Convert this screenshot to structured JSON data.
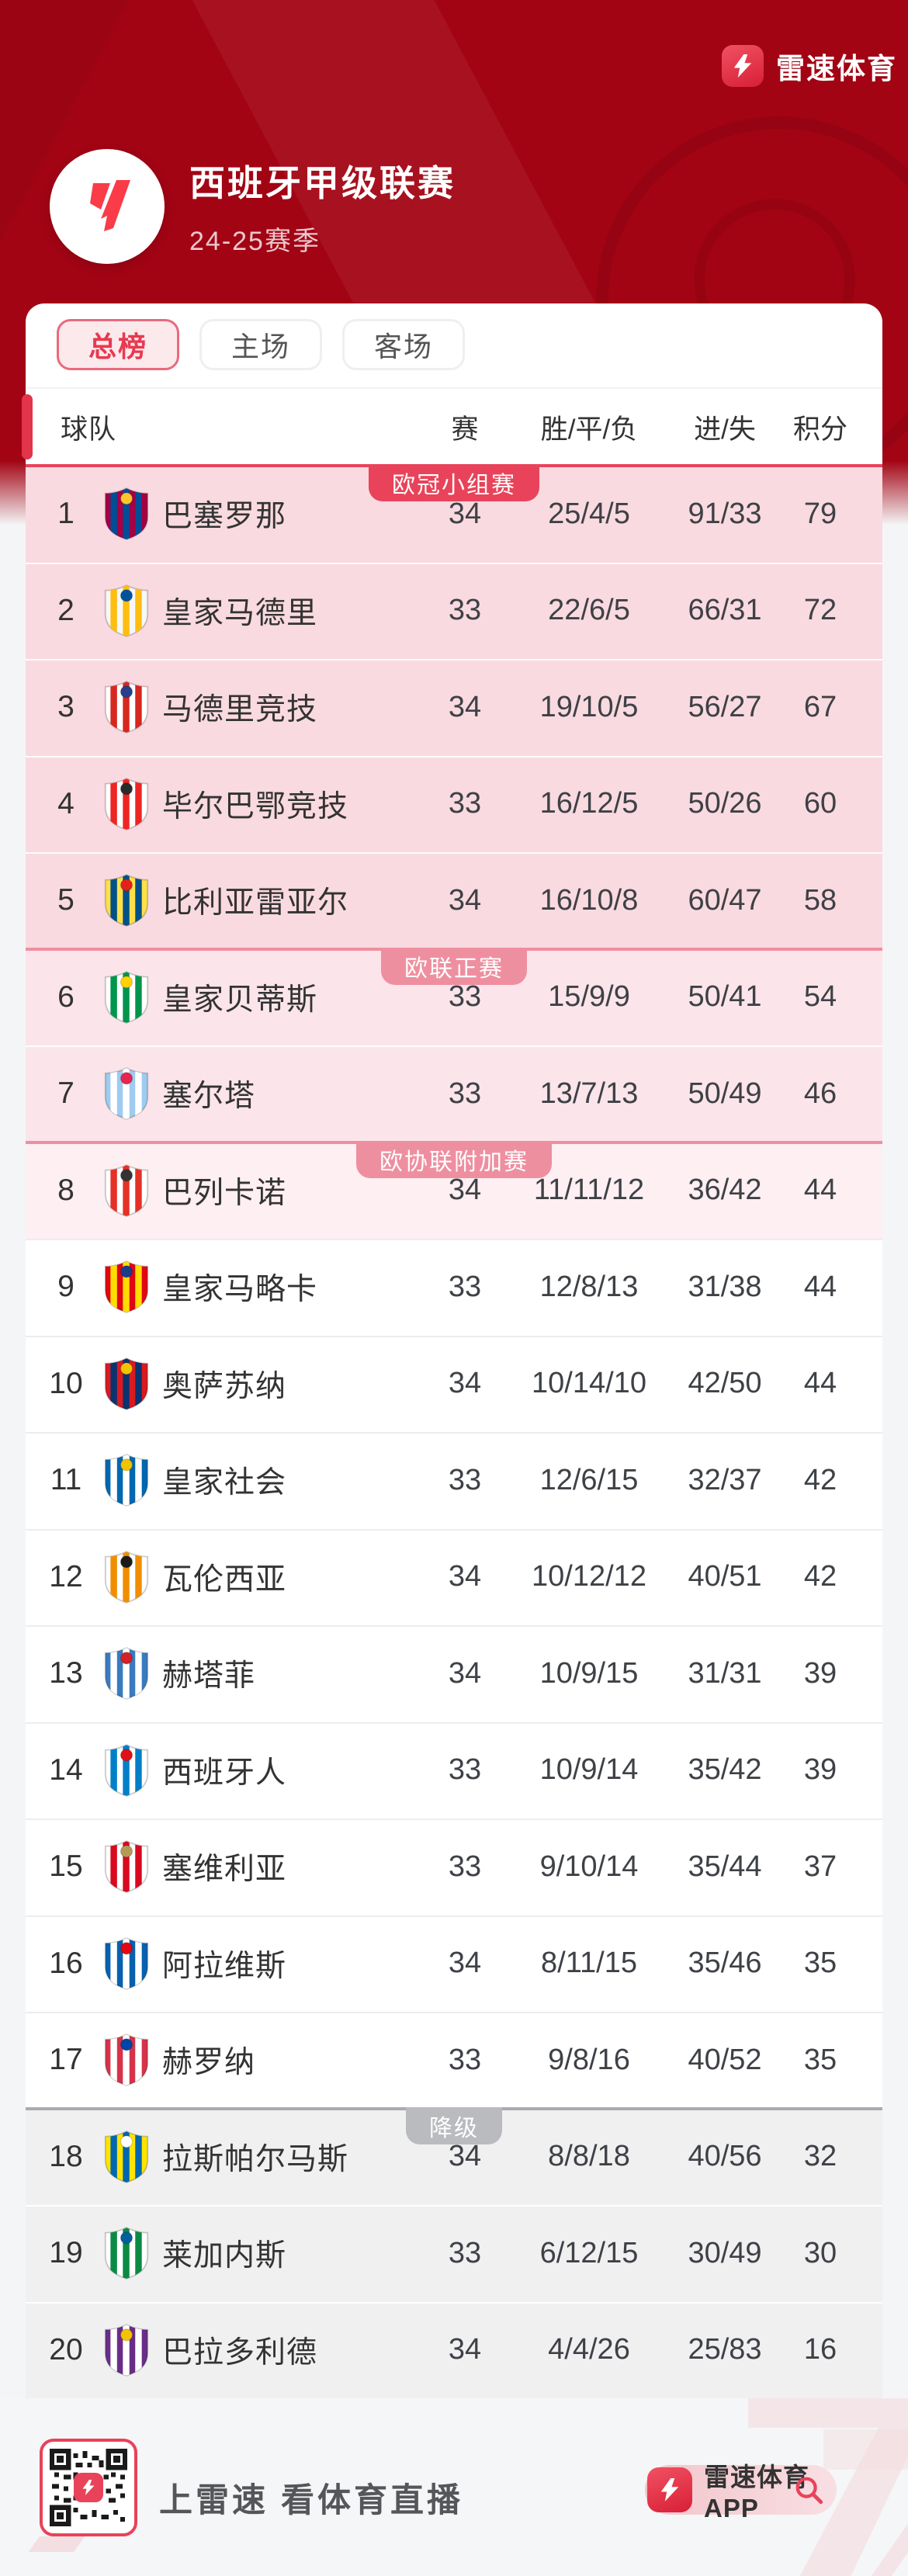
{
  "brand": {
    "name": "雷速体育"
  },
  "header": {
    "league_title": "西班牙甲级联赛",
    "season": "24-25赛季"
  },
  "tabs": [
    {
      "label": "总榜",
      "active": true
    },
    {
      "label": "主场",
      "active": false
    },
    {
      "label": "客场",
      "active": false
    }
  ],
  "table": {
    "columns": {
      "team": "球队",
      "played": "赛",
      "wdl": "胜/平/负",
      "goals": "进/失",
      "points": "积分"
    },
    "zones": [
      {
        "rank": 1,
        "label": "欧冠小组赛",
        "line_color": "#E8435A",
        "tag_color": "#E8435A"
      },
      {
        "rank": 6,
        "label": "欧联正赛",
        "line_color": "#EE8FA0",
        "tag_color": "#EE8FA0"
      },
      {
        "rank": 8,
        "label": "欧协联附加赛",
        "line_color": "#EE8FA0",
        "tag_color": "#EE8FA0"
      },
      {
        "rank": 18,
        "label": "降级",
        "line_color": "#A9ABAE",
        "tag_color": "#B9BBBE"
      }
    ],
    "rows": [
      {
        "rank": 1,
        "name": "巴塞罗那",
        "played": "34",
        "wdl": "25/4/5",
        "goals": "91/33",
        "points": "79",
        "band": "ucl",
        "logo_colors": [
          "#A50044",
          "#004D98",
          "#FDC52C"
        ]
      },
      {
        "rank": 2,
        "name": "皇家马德里",
        "played": "33",
        "wdl": "22/6/5",
        "goals": "66/31",
        "points": "72",
        "band": "ucl",
        "logo_colors": [
          "#F7F7F7",
          "#FEBE10",
          "#00529F"
        ]
      },
      {
        "rank": 3,
        "name": "马德里竞技",
        "played": "34",
        "wdl": "19/10/5",
        "goals": "56/27",
        "points": "67",
        "band": "ucl",
        "logo_colors": [
          "#FFFFFF",
          "#D6281E",
          "#273E8A"
        ]
      },
      {
        "rank": 4,
        "name": "毕尔巴鄂竞技",
        "played": "33",
        "wdl": "16/12/5",
        "goals": "50/26",
        "points": "60",
        "band": "ucl",
        "logo_colors": [
          "#FFFFFF",
          "#EE2523",
          "#2B2B2B"
        ]
      },
      {
        "rank": 5,
        "name": "比利亚雷亚尔",
        "played": "34",
        "wdl": "16/10/8",
        "goals": "60/47",
        "points": "58",
        "band": "ucl",
        "logo_colors": [
          "#FFE04B",
          "#005187",
          "#E2231A"
        ]
      },
      {
        "rank": 6,
        "name": "皇家贝蒂斯",
        "played": "33",
        "wdl": "15/9/9",
        "goals": "50/41",
        "points": "54",
        "band": "uel",
        "logo_colors": [
          "#FFFFFF",
          "#00954C",
          "#FFD200"
        ]
      },
      {
        "rank": 7,
        "name": "塞尔塔",
        "played": "33",
        "wdl": "13/7/13",
        "goals": "50/49",
        "points": "46",
        "band": "uel",
        "logo_colors": [
          "#9FCBF0",
          "#FFFFFF",
          "#E5254E"
        ]
      },
      {
        "rank": 8,
        "name": "巴列卡诺",
        "played": "34",
        "wdl": "11/11/12",
        "goals": "36/42",
        "points": "44",
        "band": "uecl",
        "logo_colors": [
          "#FFFFFF",
          "#E53027",
          "#333333"
        ]
      },
      {
        "rank": 9,
        "name": "皇家马略卡",
        "played": "33",
        "wdl": "12/8/13",
        "goals": "31/38",
        "points": "44",
        "band": "none",
        "logo_colors": [
          "#E20613",
          "#FFDD00",
          "#1A3C8C"
        ]
      },
      {
        "rank": 10,
        "name": "奥萨苏纳",
        "played": "34",
        "wdl": "10/14/10",
        "goals": "42/50",
        "points": "44",
        "band": "none",
        "logo_colors": [
          "#D91A21",
          "#0A346F",
          "#F2C400"
        ]
      },
      {
        "rank": 11,
        "name": "皇家社会",
        "played": "33",
        "wdl": "12/6/15",
        "goals": "32/37",
        "points": "42",
        "band": "none",
        "logo_colors": [
          "#0067B1",
          "#FFFFFF",
          "#F2C400"
        ]
      },
      {
        "rank": 12,
        "name": "瓦伦西亚",
        "played": "34",
        "wdl": "10/12/12",
        "goals": "40/51",
        "points": "42",
        "band": "none",
        "logo_colors": [
          "#FFFFFF",
          "#F18E00",
          "#1A1A1A"
        ]
      },
      {
        "rank": 13,
        "name": "赫塔菲",
        "played": "34",
        "wdl": "10/9/15",
        "goals": "31/31",
        "points": "39",
        "band": "none",
        "logo_colors": [
          "#3A7BBF",
          "#FFFFFF",
          "#D42027"
        ]
      },
      {
        "rank": 14,
        "name": "西班牙人",
        "played": "33",
        "wdl": "10/9/14",
        "goals": "35/42",
        "points": "39",
        "band": "none",
        "logo_colors": [
          "#FFFFFF",
          "#007FC8",
          "#DF1115"
        ]
      },
      {
        "rank": 15,
        "name": "塞维利亚",
        "played": "33",
        "wdl": "9/10/14",
        "goals": "35/44",
        "points": "37",
        "band": "none",
        "logo_colors": [
          "#FFFFFF",
          "#D8091F",
          "#B49A57"
        ]
      },
      {
        "rank": 16,
        "name": "阿拉维斯",
        "played": "34",
        "wdl": "8/11/15",
        "goals": "35/46",
        "points": "35",
        "band": "none",
        "logo_colors": [
          "#0761AF",
          "#FFFFFF",
          "#E30613"
        ]
      },
      {
        "rank": 17,
        "name": "赫罗纳",
        "played": "33",
        "wdl": "9/8/16",
        "goals": "40/52",
        "points": "35",
        "band": "none",
        "logo_colors": [
          "#D6334A",
          "#FFFFFF",
          "#0046A8"
        ]
      },
      {
        "rank": 18,
        "name": "拉斯帕尔马斯",
        "played": "34",
        "wdl": "8/8/18",
        "goals": "40/56",
        "points": "32",
        "band": "rel",
        "logo_colors": [
          "#FFE400",
          "#0067B1",
          "#FFFFFF"
        ]
      },
      {
        "rank": 19,
        "name": "莱加内斯",
        "played": "33",
        "wdl": "6/12/15",
        "goals": "30/49",
        "points": "30",
        "band": "rel",
        "logo_colors": [
          "#FFFFFF",
          "#0B8A44",
          "#00609C"
        ]
      },
      {
        "rank": 20,
        "name": "巴拉多利德",
        "played": "34",
        "wdl": "4/4/26",
        "goals": "25/83",
        "points": "16",
        "band": "rel",
        "logo_colors": [
          "#6A2D87",
          "#FFFFFF",
          "#F4C300"
        ]
      }
    ]
  },
  "footer": {
    "slogan": "上雷速 看体育直播",
    "app_label": "雷速体育APP"
  },
  "colors": {
    "hero_red": "#A20414",
    "accent_red": "#E8435A",
    "band_ucl": "#F9DAE0",
    "band_uel": "#FBE5EA",
    "band_uecl": "#FDEFF2",
    "band_rel": "#F0F0F1"
  }
}
